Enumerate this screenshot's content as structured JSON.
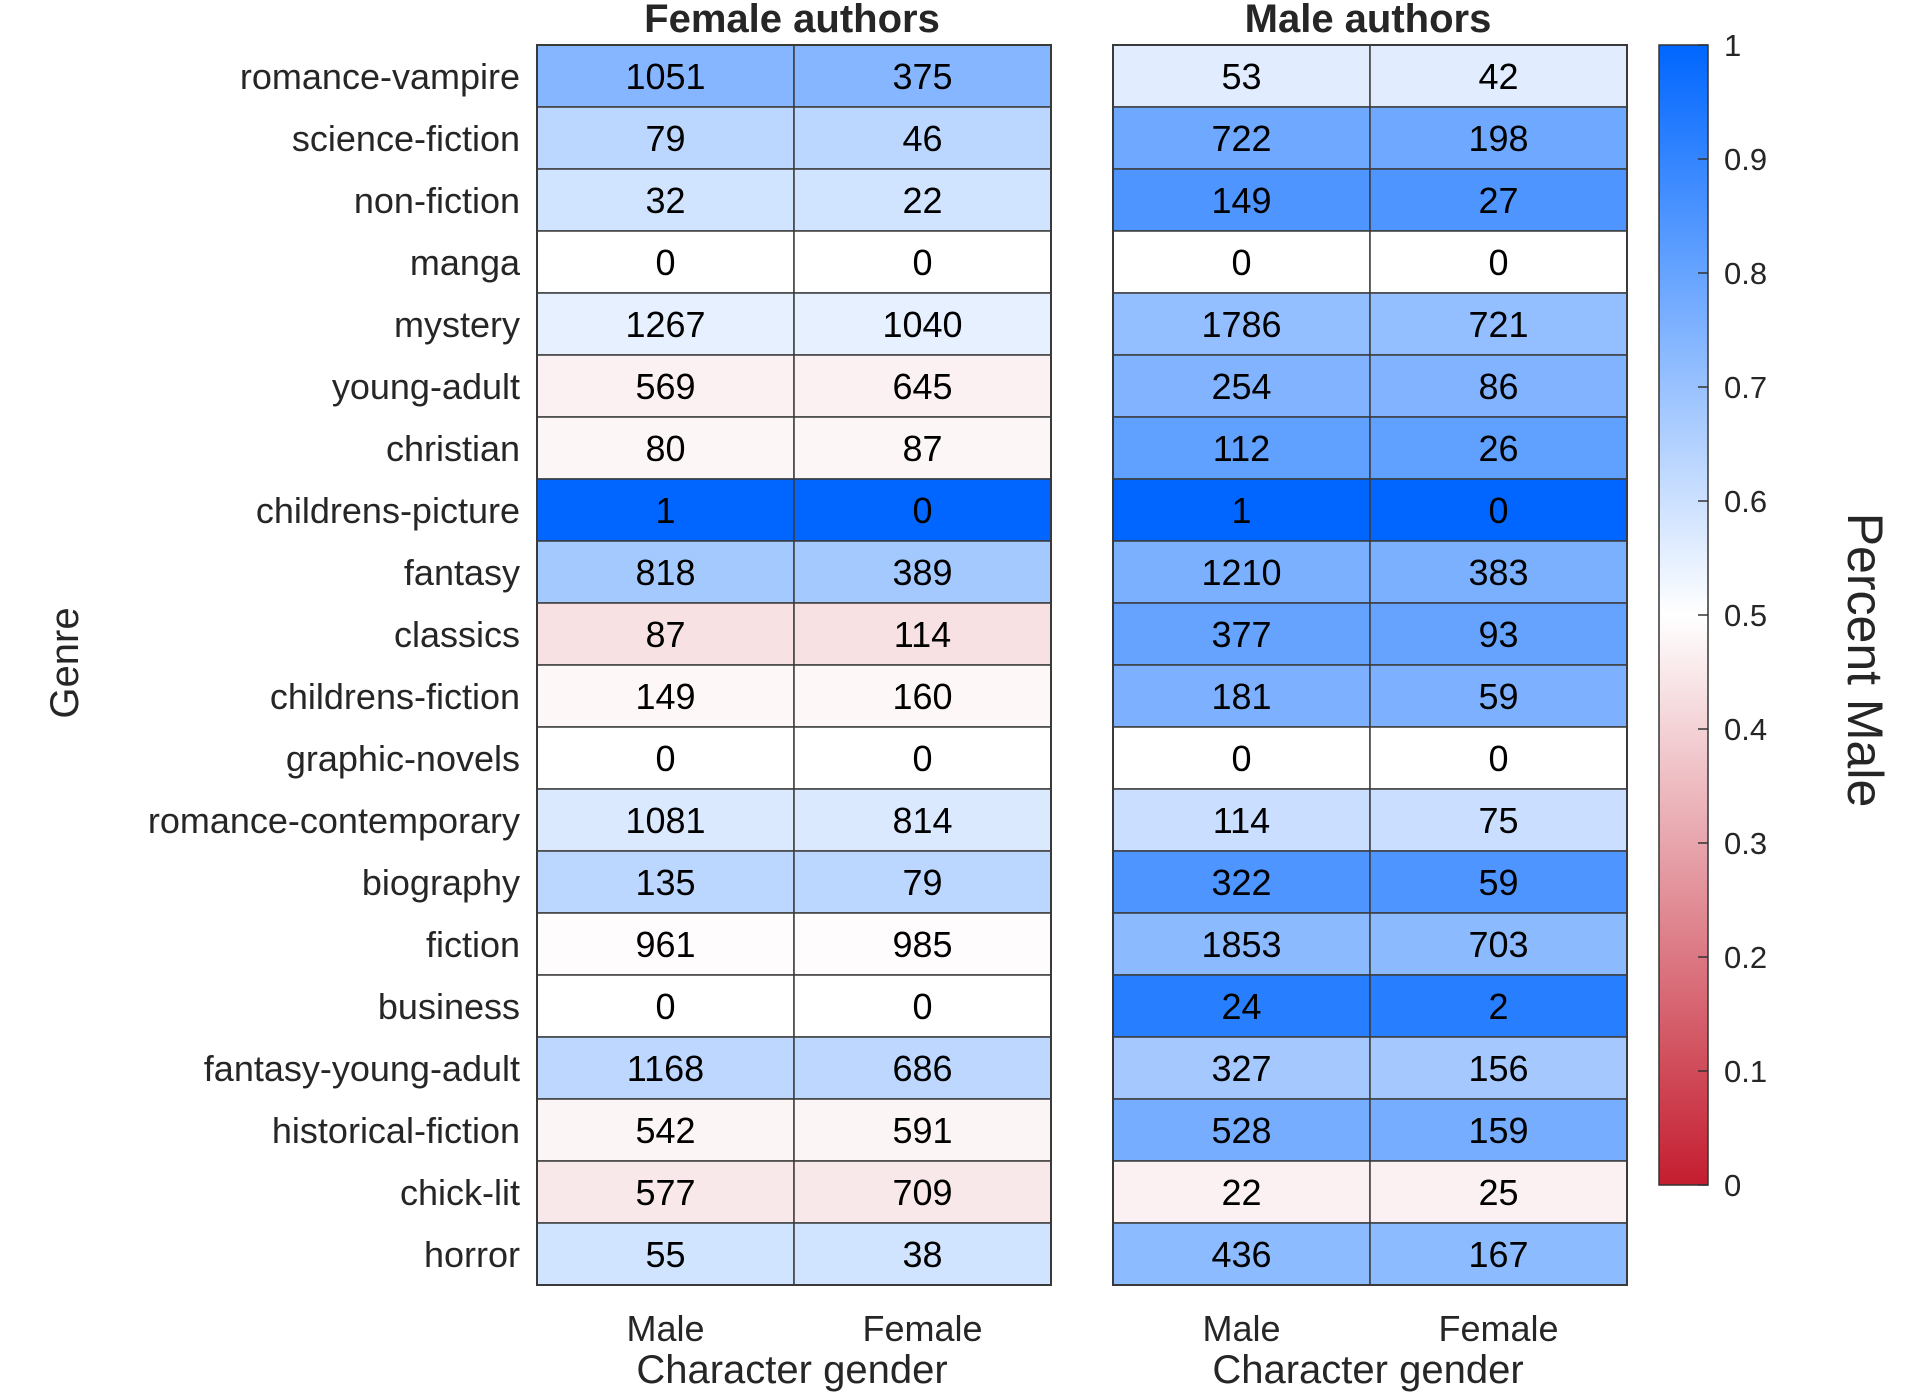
{
  "chart_data": {
    "type": "heatmap",
    "ylabel": "Genre",
    "genres": [
      "romance-vampire",
      "science-fiction",
      "non-fiction",
      "manga",
      "mystery",
      "young-adult",
      "christian",
      "childrens-picture",
      "fantasy",
      "classics",
      "childrens-fiction",
      "graphic-novels",
      "romance-contemporary",
      "biography",
      "fiction",
      "business",
      "fantasy-young-adult",
      "historical-fiction",
      "chick-lit",
      "horror"
    ],
    "panels": [
      {
        "title": "Female authors",
        "xlabel": "Character gender",
        "columns": [
          "Male",
          "Female"
        ],
        "values": [
          [
            1051,
            375
          ],
          [
            79,
            46
          ],
          [
            32,
            22
          ],
          [
            0,
            0
          ],
          [
            1267,
            1040
          ],
          [
            569,
            645
          ],
          [
            80,
            87
          ],
          [
            1,
            0
          ],
          [
            818,
            389
          ],
          [
            87,
            114
          ],
          [
            149,
            160
          ],
          [
            0,
            0
          ],
          [
            1081,
            814
          ],
          [
            135,
            79
          ],
          [
            961,
            985
          ],
          [
            0,
            0
          ],
          [
            1168,
            686
          ],
          [
            542,
            591
          ],
          [
            577,
            709
          ],
          [
            55,
            38
          ]
        ]
      },
      {
        "title": "Male authors",
        "xlabel": "Character gender",
        "columns": [
          "Male",
          "Female"
        ],
        "values": [
          [
            53,
            42
          ],
          [
            722,
            198
          ],
          [
            149,
            27
          ],
          [
            0,
            0
          ],
          [
            1786,
            721
          ],
          [
            254,
            86
          ],
          [
            112,
            26
          ],
          [
            1,
            0
          ],
          [
            1210,
            383
          ],
          [
            377,
            93
          ],
          [
            181,
            59
          ],
          [
            0,
            0
          ],
          [
            114,
            75
          ],
          [
            322,
            59
          ],
          [
            1853,
            703
          ],
          [
            24,
            2
          ],
          [
            327,
            156
          ],
          [
            528,
            159
          ],
          [
            22,
            25
          ],
          [
            436,
            167
          ]
        ]
      }
    ],
    "colorbar": {
      "label": "Percent Male",
      "range": [
        0,
        1
      ],
      "ticks": [
        "0",
        "0.1",
        "0.2",
        "0.3",
        "0.4",
        "0.5",
        "0.6",
        "0.7",
        "0.8",
        "0.9",
        "1"
      ],
      "low_color": "#c41e30",
      "mid_color": "#ffffff",
      "high_color": "#0066ff"
    }
  }
}
